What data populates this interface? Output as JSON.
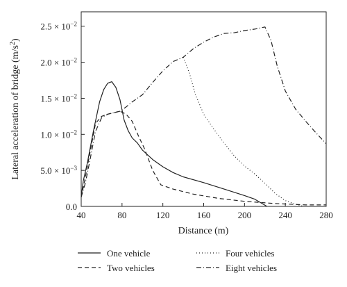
{
  "chart_data": {
    "type": "line",
    "xlabel": "Distance (m)",
    "ylabel_main": "Lateral acceleration of bridge (m/s",
    "ylabel_sup": "2",
    "ylabel_end": ")",
    "xlim": [
      40,
      280
    ],
    "ylim": [
      0,
      0.027
    ],
    "grid": false,
    "legend_position": "bottom",
    "x_ticks": [
      {
        "value": 40,
        "label": "40"
      },
      {
        "value": 80,
        "label": "80"
      },
      {
        "value": 120,
        "label": "120"
      },
      {
        "value": 160,
        "label": "160"
      },
      {
        "value": 200,
        "label": "200"
      },
      {
        "value": 240,
        "label": "240"
      },
      {
        "value": 280,
        "label": "280"
      }
    ],
    "y_ticks": [
      {
        "value": 0,
        "mant": "0.0",
        "exp": ""
      },
      {
        "value": 0.005,
        "mant": "5.0 × 10",
        "exp": "−3"
      },
      {
        "value": 0.01,
        "mant": "1.0 × 10",
        "exp": "−2"
      },
      {
        "value": 0.015,
        "mant": "1.5 × 10",
        "exp": "−2"
      },
      {
        "value": 0.02,
        "mant": "2.0 × 10",
        "exp": "−2"
      },
      {
        "value": 0.025,
        "mant": "2.5 × 10",
        "exp": "−2"
      }
    ],
    "series": [
      {
        "name": "One vehicle",
        "dash": "solid",
        "points": [
          [
            40,
            0.0013
          ],
          [
            42,
            0.0035
          ],
          [
            46,
            0.006
          ],
          [
            52,
            0.0105
          ],
          [
            58,
            0.0145
          ],
          [
            62,
            0.0162
          ],
          [
            66,
            0.0171
          ],
          [
            70,
            0.0173
          ],
          [
            74,
            0.0165
          ],
          [
            78,
            0.0148
          ],
          [
            82,
            0.012
          ],
          [
            86,
            0.0105
          ],
          [
            90,
            0.0095
          ],
          [
            95,
            0.0088
          ],
          [
            100,
            0.0078
          ],
          [
            110,
            0.0065
          ],
          [
            120,
            0.0055
          ],
          [
            130,
            0.0047
          ],
          [
            140,
            0.0041
          ],
          [
            160,
            0.0033
          ],
          [
            180,
            0.0024
          ],
          [
            200,
            0.0015
          ],
          [
            210,
            0.001
          ],
          [
            222,
            0.0
          ]
        ]
      },
      {
        "name": "Two vehicles",
        "dash": "dashed",
        "points": [
          [
            40,
            0.0013
          ],
          [
            44,
            0.004
          ],
          [
            48,
            0.007
          ],
          [
            54,
            0.0115
          ],
          [
            60,
            0.0125
          ],
          [
            66,
            0.0128
          ],
          [
            72,
            0.013
          ],
          [
            78,
            0.0132
          ],
          [
            84,
            0.0128
          ],
          [
            90,
            0.0118
          ],
          [
            96,
            0.0098
          ],
          [
            102,
            0.008
          ],
          [
            110,
            0.005
          ],
          [
            118,
            0.003
          ],
          [
            130,
            0.0024
          ],
          [
            150,
            0.0017
          ],
          [
            175,
            0.0011
          ],
          [
            200,
            0.0007
          ],
          [
            230,
            0.0004
          ],
          [
            260,
            0.0002
          ],
          [
            280,
            0.0002
          ]
        ]
      },
      {
        "name": "Four vehicles",
        "dash": "dotted",
        "points": [
          [
            140,
            0.0207
          ],
          [
            146,
            0.0185
          ],
          [
            152,
            0.0155
          ],
          [
            160,
            0.0128
          ],
          [
            170,
            0.0107
          ],
          [
            180,
            0.0088
          ],
          [
            190,
            0.007
          ],
          [
            200,
            0.0056
          ],
          [
            210,
            0.0045
          ],
          [
            220,
            0.0032
          ],
          [
            230,
            0.0018
          ],
          [
            240,
            0.0008
          ],
          [
            250,
            0.0003
          ],
          [
            258,
            0.0
          ]
        ]
      },
      {
        "name": "Eight vehicles",
        "dash": "dashdot",
        "points": [
          [
            40,
            0.0013
          ],
          [
            44,
            0.0032
          ],
          [
            48,
            0.006
          ],
          [
            54,
            0.0104
          ],
          [
            60,
            0.0123
          ],
          [
            66,
            0.0128
          ],
          [
            72,
            0.013
          ],
          [
            78,
            0.0132
          ],
          [
            84,
            0.0138
          ],
          [
            90,
            0.0145
          ],
          [
            100,
            0.0155
          ],
          [
            110,
            0.0172
          ],
          [
            120,
            0.0188
          ],
          [
            130,
            0.0201
          ],
          [
            140,
            0.0207
          ],
          [
            150,
            0.0219
          ],
          [
            160,
            0.0228
          ],
          [
            170,
            0.0235
          ],
          [
            180,
            0.024
          ],
          [
            190,
            0.0241
          ],
          [
            200,
            0.0244
          ],
          [
            210,
            0.0246
          ],
          [
            220,
            0.0249
          ],
          [
            226,
            0.023
          ],
          [
            232,
            0.0195
          ],
          [
            240,
            0.016
          ],
          [
            250,
            0.0135
          ],
          [
            260,
            0.0118
          ],
          [
            270,
            0.0102
          ],
          [
            280,
            0.0087
          ]
        ]
      }
    ]
  }
}
